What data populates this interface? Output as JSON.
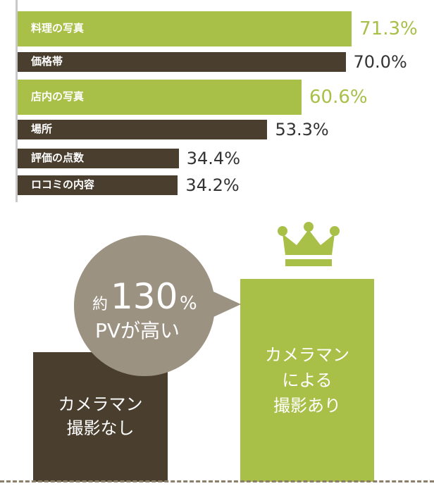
{
  "chart_data": {
    "type": "bar",
    "orientation": "horizontal",
    "xlim": [
      0,
      100
    ],
    "categories": [
      "料理の写真",
      "価格帯",
      "店内の写真",
      "場所",
      "評価の点数",
      "ロコミの内容"
    ],
    "values": [
      71.3,
      70.0,
      60.6,
      53.3,
      34.4,
      34.2
    ],
    "value_labels": [
      "71.3%",
      "70.0%",
      "60.6%",
      "53.3%",
      "34.4%",
      "34.2%"
    ],
    "highlighted": [
      true,
      false,
      true,
      false,
      false,
      false
    ]
  },
  "colors": {
    "highlight": "#a8bf48",
    "dark": "#4a3f2f",
    "bubble": "#9c9282",
    "dark_text": "#333333"
  },
  "comparison": {
    "without": {
      "line1": "カメラマン",
      "line2": "撮影なし"
    },
    "with": {
      "line1": "カメラマン",
      "line2": "による",
      "line3": "撮影あり"
    },
    "bubble": {
      "prefix": "約",
      "number": "130",
      "unit": "%",
      "line2": "PVが高い"
    },
    "crown_icon": "crown-icon"
  }
}
